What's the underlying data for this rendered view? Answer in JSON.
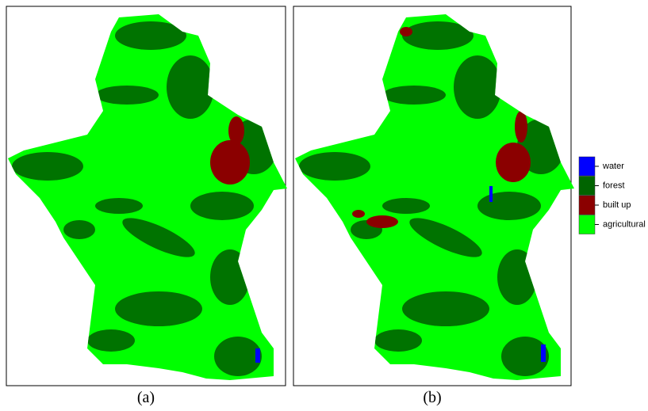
{
  "panels": [
    {
      "caption": "(a)"
    },
    {
      "caption": "(b)"
    }
  ],
  "legend": [
    {
      "label": "water",
      "color": "#0000ff"
    },
    {
      "label": "forest",
      "color": "#006400"
    },
    {
      "label": "built up",
      "color": "#8b0000"
    },
    {
      "label": "agricultural",
      "color": "#00ff00"
    }
  ]
}
